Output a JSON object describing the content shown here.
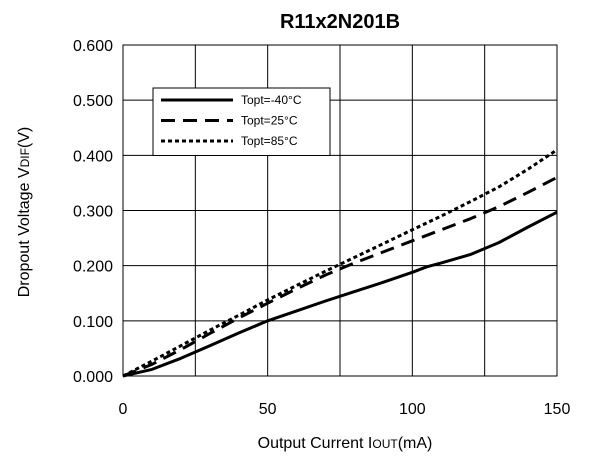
{
  "chart_data": {
    "type": "line",
    "title": "R11x2N201B",
    "xlabel": {
      "main": "Output Current I",
      "sub": "OUT",
      "unit": "(mA)"
    },
    "ylabel": {
      "main": "Dropout Voltage V",
      "sub": "DIF",
      "unit": "(V)"
    },
    "xlim": [
      0,
      150
    ],
    "ylim": [
      0,
      0.6
    ],
    "x_ticks": [
      0,
      50,
      100,
      150
    ],
    "x_tick_labels": [
      "0",
      "50",
      "100",
      "150"
    ],
    "y_ticks": [
      0,
      0.1,
      0.2,
      0.3,
      0.4,
      0.5,
      0.6
    ],
    "y_tick_labels": [
      "0.000",
      "0.100",
      "0.200",
      "0.300",
      "0.400",
      "0.500",
      "0.600"
    ],
    "x_grid_step": 25,
    "grid": true,
    "legend_position": "top-left",
    "series": [
      {
        "name": "Topt=-40°C",
        "style": "solid",
        "color": "#000000",
        "x": [
          0,
          10,
          20,
          30,
          40,
          50,
          60,
          70,
          80,
          90,
          100,
          105,
          110,
          120,
          130,
          140,
          150
        ],
        "y": [
          0,
          0.012,
          0.032,
          0.055,
          0.078,
          0.1,
          0.118,
          0.136,
          0.153,
          0.17,
          0.188,
          0.198,
          0.205,
          0.22,
          0.242,
          0.27,
          0.297
        ]
      },
      {
        "name": "Topt=25°C",
        "style": "dashed",
        "color": "#000000",
        "x": [
          0,
          10,
          20,
          30,
          40,
          50,
          60,
          70,
          80,
          90,
          100,
          110,
          120,
          130,
          140,
          150
        ],
        "y": [
          0,
          0.021,
          0.048,
          0.077,
          0.105,
          0.132,
          0.158,
          0.183,
          0.205,
          0.225,
          0.245,
          0.265,
          0.285,
          0.307,
          0.333,
          0.36
        ]
      },
      {
        "name": "Topt=85°C",
        "style": "dotted",
        "color": "#000000",
        "x": [
          0,
          10,
          20,
          30,
          40,
          50,
          60,
          70,
          80,
          90,
          100,
          110,
          120,
          130,
          140,
          150
        ],
        "y": [
          0,
          0.027,
          0.055,
          0.083,
          0.11,
          0.138,
          0.164,
          0.19,
          0.215,
          0.24,
          0.265,
          0.29,
          0.316,
          0.343,
          0.375,
          0.41
        ]
      }
    ]
  }
}
